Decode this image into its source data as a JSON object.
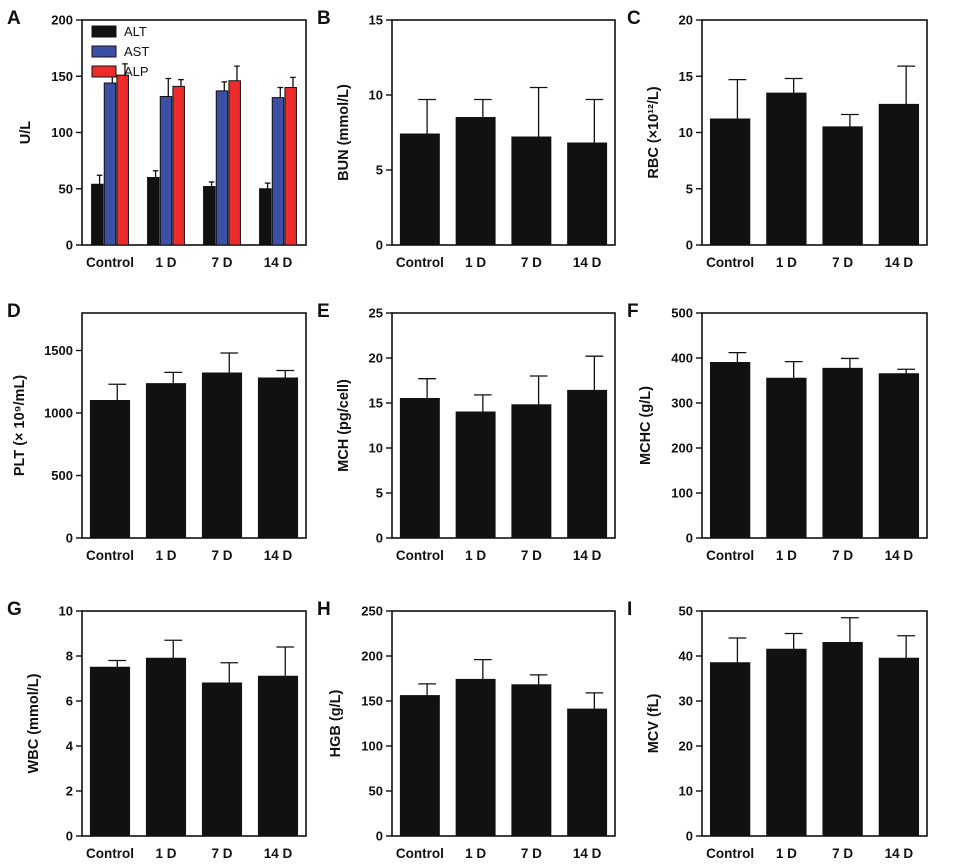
{
  "chart_data": [
    {
      "id": "A",
      "type": "bar",
      "ylabel": "U/L",
      "ylim": [
        0,
        200
      ],
      "yticks": [
        0,
        50,
        100,
        150,
        200
      ],
      "categories": [
        "Control",
        "1 D",
        "7 D",
        "14 D"
      ],
      "series": [
        {
          "name": "ALT",
          "color": "#111111",
          "values": [
            54,
            60,
            52,
            50
          ],
          "errors": [
            8,
            6,
            4,
            5
          ]
        },
        {
          "name": "AST",
          "color": "#3b4fa5",
          "values": [
            144,
            132,
            137,
            131
          ],
          "errors": [
            15,
            16,
            8,
            9
          ]
        },
        {
          "name": "ALP",
          "color": "#ee2a2a",
          "values": [
            151,
            141,
            146,
            140
          ],
          "errors": [
            10,
            6,
            13,
            9
          ]
        }
      ],
      "legend": "top-left"
    },
    {
      "id": "B",
      "type": "bar",
      "ylabel": "BUN (mmol/L)",
      "ylim": [
        0,
        15
      ],
      "yticks": [
        0,
        5,
        10,
        15
      ],
      "categories": [
        "Control",
        "1 D",
        "7 D",
        "14 D"
      ],
      "series": [
        {
          "name": "BUN",
          "color": "#111111",
          "values": [
            7.4,
            8.5,
            7.2,
            6.8
          ],
          "errors": [
            2.3,
            1.2,
            3.3,
            2.9
          ]
        }
      ]
    },
    {
      "id": "C",
      "type": "bar",
      "ylabel": "RBC (×10¹²/L)",
      "ylim": [
        0,
        20
      ],
      "yticks": [
        0,
        5,
        10,
        15,
        20
      ],
      "categories": [
        "Control",
        "1 D",
        "7 D",
        "14 D"
      ],
      "series": [
        {
          "name": "RBC",
          "color": "#111111",
          "values": [
            11.2,
            13.5,
            10.5,
            12.5
          ],
          "errors": [
            3.5,
            1.3,
            1.1,
            3.4
          ]
        }
      ]
    },
    {
      "id": "D",
      "type": "bar",
      "ylabel": "PLT (× 10⁹/mL)",
      "ylim": [
        0,
        1800
      ],
      "yticks": [
        0,
        500,
        1000,
        1500
      ],
      "categories": [
        "Control",
        "1 D",
        "7 D",
        "14 D"
      ],
      "series": [
        {
          "name": "PLT",
          "color": "#111111",
          "values": [
            1100,
            1235,
            1320,
            1280
          ],
          "errors": [
            130,
            90,
            160,
            60
          ]
        }
      ]
    },
    {
      "id": "E",
      "type": "bar",
      "ylabel": "MCH (pg/cell)",
      "ylim": [
        0,
        25
      ],
      "yticks": [
        0,
        5,
        10,
        15,
        20,
        25
      ],
      "categories": [
        "Control",
        "1 D",
        "7 D",
        "14 D"
      ],
      "series": [
        {
          "name": "MCH",
          "color": "#111111",
          "values": [
            15.5,
            14.0,
            14.8,
            16.4
          ],
          "errors": [
            2.2,
            1.9,
            3.2,
            3.8
          ]
        }
      ]
    },
    {
      "id": "F",
      "type": "bar",
      "ylabel": "MCHC (g/L)",
      "ylim": [
        0,
        500
      ],
      "yticks": [
        0,
        100,
        200,
        300,
        400,
        500
      ],
      "categories": [
        "Control",
        "1 D",
        "7 D",
        "14 D"
      ],
      "series": [
        {
          "name": "MCHC",
          "color": "#111111",
          "values": [
            390,
            355,
            377,
            365
          ],
          "errors": [
            22,
            37,
            22,
            10
          ]
        }
      ]
    },
    {
      "id": "G",
      "type": "bar",
      "ylabel": "WBC (mmol/L)",
      "ylim": [
        0,
        10
      ],
      "yticks": [
        0,
        2,
        4,
        6,
        8,
        10
      ],
      "categories": [
        "Control",
        "1 D",
        "7 D",
        "14 D"
      ],
      "series": [
        {
          "name": "WBC",
          "color": "#111111",
          "values": [
            7.5,
            7.9,
            6.8,
            7.1
          ],
          "errors": [
            0.3,
            0.8,
            0.9,
            1.3
          ]
        }
      ]
    },
    {
      "id": "H",
      "type": "bar",
      "ylabel": "HGB (g/L)",
      "ylim": [
        0,
        250
      ],
      "yticks": [
        0,
        50,
        100,
        150,
        200,
        250
      ],
      "categories": [
        "Control",
        "1 D",
        "7 D",
        "14 D"
      ],
      "series": [
        {
          "name": "HGB",
          "color": "#111111",
          "values": [
            156,
            174,
            168,
            141
          ],
          "errors": [
            13,
            22,
            11,
            18
          ]
        }
      ]
    },
    {
      "id": "I",
      "type": "bar",
      "ylabel": "MCV (fL)",
      "ylim": [
        0,
        50
      ],
      "yticks": [
        0,
        10,
        20,
        30,
        40,
        50
      ],
      "categories": [
        "Control",
        "1 D",
        "7 D",
        "14 D"
      ],
      "series": [
        {
          "name": "MCV",
          "color": "#111111",
          "values": [
            38.5,
            41.5,
            43.0,
            39.5
          ],
          "errors": [
            5.5,
            3.5,
            5.5,
            5.0
          ]
        }
      ]
    }
  ]
}
